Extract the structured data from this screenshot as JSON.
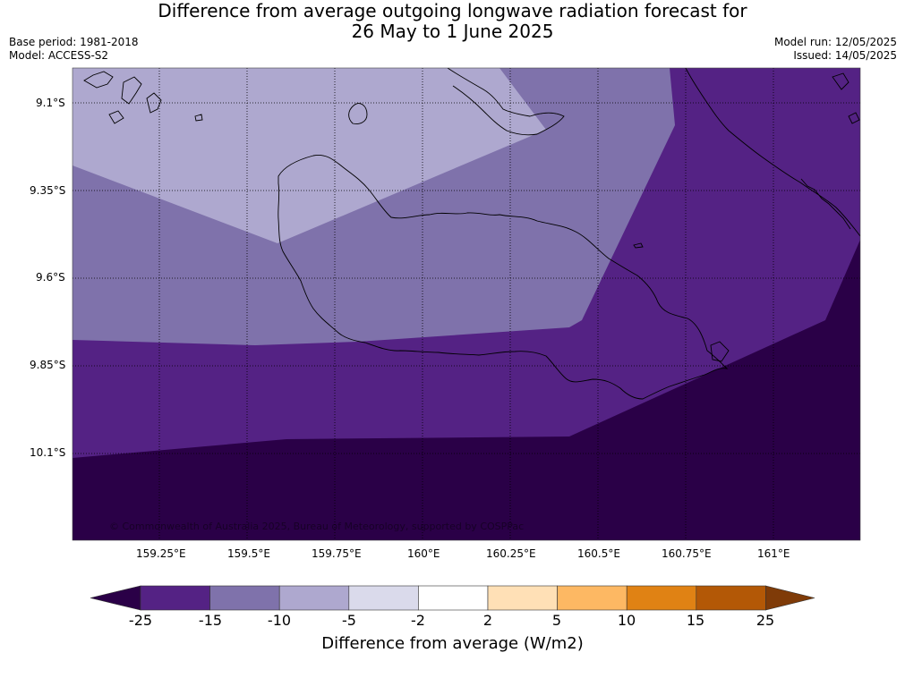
{
  "header": {
    "title_line1": "Difference from average outgoing longwave radiation forecast for",
    "title_line2": "26 May to 1 June 2025",
    "base_period": "Base period: 1981-2018",
    "model": "Model: ACCESS-S2",
    "model_run": "Model run: 12/05/2025",
    "issued": "Issued: 14/05/2025"
  },
  "map": {
    "lat_labels": [
      "9.1°S",
      "9.35°S",
      "9.6°S",
      "9.85°S",
      "10.1°S"
    ],
    "lon_labels": [
      "159.25°E",
      "159.5°E",
      "159.75°E",
      "160°E",
      "160.25°E",
      "160.5°E",
      "160.75°E",
      "161°E"
    ],
    "copyright": "© Commonwealth of Australia 2025, Bureau of Meteorology, supported by COSPPac",
    "grid": true
  },
  "colorbar": {
    "title": "Difference from average (W/m2)",
    "labels": [
      "-25",
      "-15",
      "-10",
      "-5",
      "-2",
      "2",
      "5",
      "10",
      "15",
      "25"
    ],
    "colors": {
      "below_min": "#2a0047",
      "bins": [
        "#542284",
        "#7f72ab",
        "#aea8cf",
        "#dadaeb",
        "#ffffff",
        "#ffe0b6",
        "#fdb863",
        "#e08214",
        "#b35806"
      ],
      "above_max": "#7f3b08"
    }
  }
}
